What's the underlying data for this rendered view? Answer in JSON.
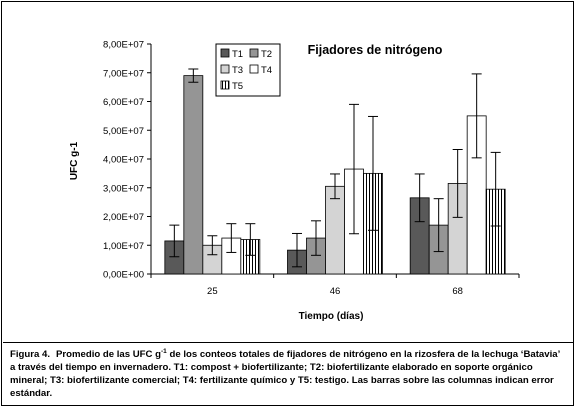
{
  "chart_data": {
    "type": "bar",
    "title": "Fijadores de nitrógeno",
    "xlabel": "Tiempo (días)",
    "ylabel": "UFC g-1",
    "categories": [
      "25",
      "46",
      "68"
    ],
    "ylim": [
      0,
      80000000
    ],
    "yticks": [
      {
        "value": 0,
        "label": "0,00E+00"
      },
      {
        "value": 10000000,
        "label": "1,00E+07"
      },
      {
        "value": 20000000,
        "label": "2,00E+07"
      },
      {
        "value": 30000000,
        "label": "3,00E+07"
      },
      {
        "value": 40000000,
        "label": "4,00E+07"
      },
      {
        "value": 50000000,
        "label": "5,00E+07"
      },
      {
        "value": 60000000,
        "label": "6,00E+07"
      },
      {
        "value": 70000000,
        "label": "7,00E+07"
      },
      {
        "value": 80000000,
        "label": "8,00E+07"
      }
    ],
    "grid": false,
    "legend_position": "top-left",
    "series": [
      {
        "name": "T1",
        "color": "#595959",
        "pattern": "solid",
        "values": [
          11500000,
          8300000,
          26500000
        ],
        "error": [
          5500000,
          5800000,
          8300000
        ]
      },
      {
        "name": "T2",
        "color": "#959595",
        "pattern": "solid",
        "values": [
          69000000,
          12500000,
          17000000
        ],
        "error": [
          2300000,
          6000000,
          9200000
        ]
      },
      {
        "name": "T3",
        "color": "#d4d4d4",
        "pattern": "solid",
        "values": [
          10000000,
          30500000,
          31500000
        ],
        "error": [
          3300000,
          4300000,
          11800000
        ]
      },
      {
        "name": "T4",
        "color": "#ffffff",
        "pattern": "solid",
        "values": [
          12500000,
          36500000,
          55000000
        ],
        "error": [
          5000000,
          22500000,
          14600000
        ]
      },
      {
        "name": "T5",
        "color": "#ffffff",
        "pattern": "vertical-lines",
        "values": [
          12000000,
          35000000,
          29500000
        ],
        "error": [
          5500000,
          19800000,
          12800000
        ]
      }
    ]
  },
  "caption": {
    "label": "Figura 4.",
    "text_before_sup": "Promedio de las UFC g",
    "sup": "-1",
    "text_after_sup": " de los conteos totales de fijadores de nitrógeno en la rizosfera de la lechuga ‘Batavia’ a través del tiempo en invernadero. T1: compost + biofertilizante; T2: biofertilizante elaborado en soporte orgánico mineral; T3: biofertilizante comercial; T4: fertilizante químico y T5:  testigo. Las barras sobre las columnas indican error estándar."
  }
}
